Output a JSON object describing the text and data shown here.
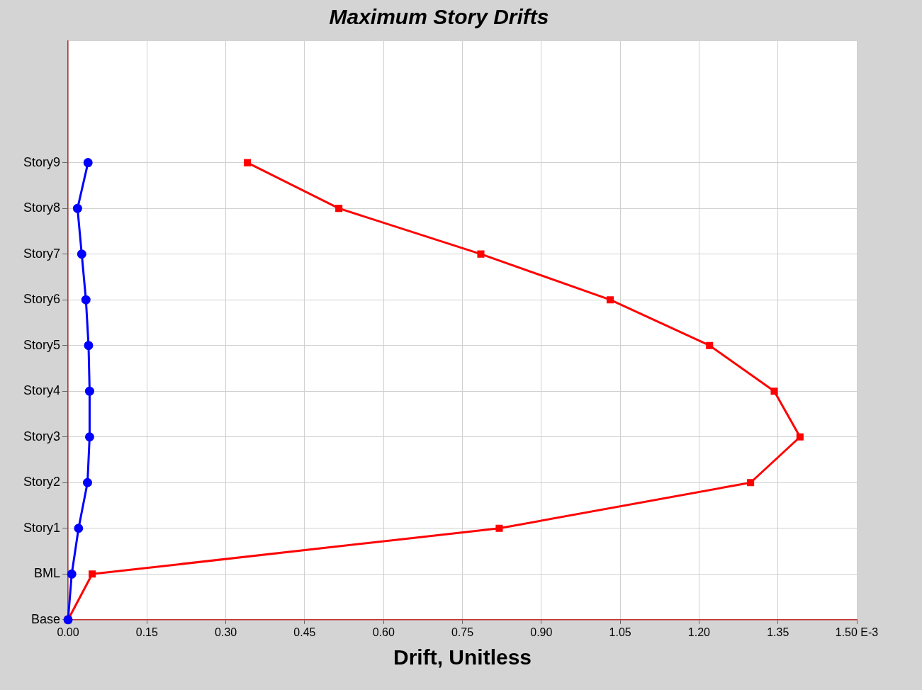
{
  "chart_data": {
    "type": "line",
    "title": "Maximum Story Drifts",
    "xlabel": "Drift, Unitless",
    "orientation": "horizontal",
    "categories": [
      "Story9",
      "Story8",
      "Story7",
      "Story6",
      "Story5",
      "Story4",
      "Story3",
      "Story2",
      "Story1",
      "BML",
      "Base"
    ],
    "series": [
      {
        "color": "#0000ff",
        "marker": "circle",
        "values": [
          0.038,
          0.018,
          0.026,
          0.034,
          0.039,
          0.041,
          0.041,
          0.037,
          0.02,
          0.007,
          0
        ]
      },
      {
        "color": "#ff0000",
        "marker": "square",
        "values": [
          0.341,
          0.515,
          0.785,
          1.031,
          1.22,
          1.343,
          1.392,
          1.298,
          0.82,
          0.046,
          0
        ]
      }
    ],
    "xlim": [
      0,
      1.5
    ],
    "xticks": [
      {
        "value": 0,
        "label": "0.00"
      },
      {
        "value": 0.15,
        "label": "0.15"
      },
      {
        "value": 0.3,
        "label": "0.30"
      },
      {
        "value": 0.45,
        "label": "0.45"
      },
      {
        "value": 0.6,
        "label": "0.60"
      },
      {
        "value": 0.75,
        "label": "0.75"
      },
      {
        "value": 0.9,
        "label": "0.90"
      },
      {
        "value": 1.05,
        "label": "1.05"
      },
      {
        "value": 1.2,
        "label": "1.20"
      },
      {
        "value": 1.35,
        "label": "1.35"
      },
      {
        "value": 1.5,
        "label": "1.50 E-3"
      }
    ],
    "grid": true,
    "legend": false,
    "line_style": "solid"
  }
}
